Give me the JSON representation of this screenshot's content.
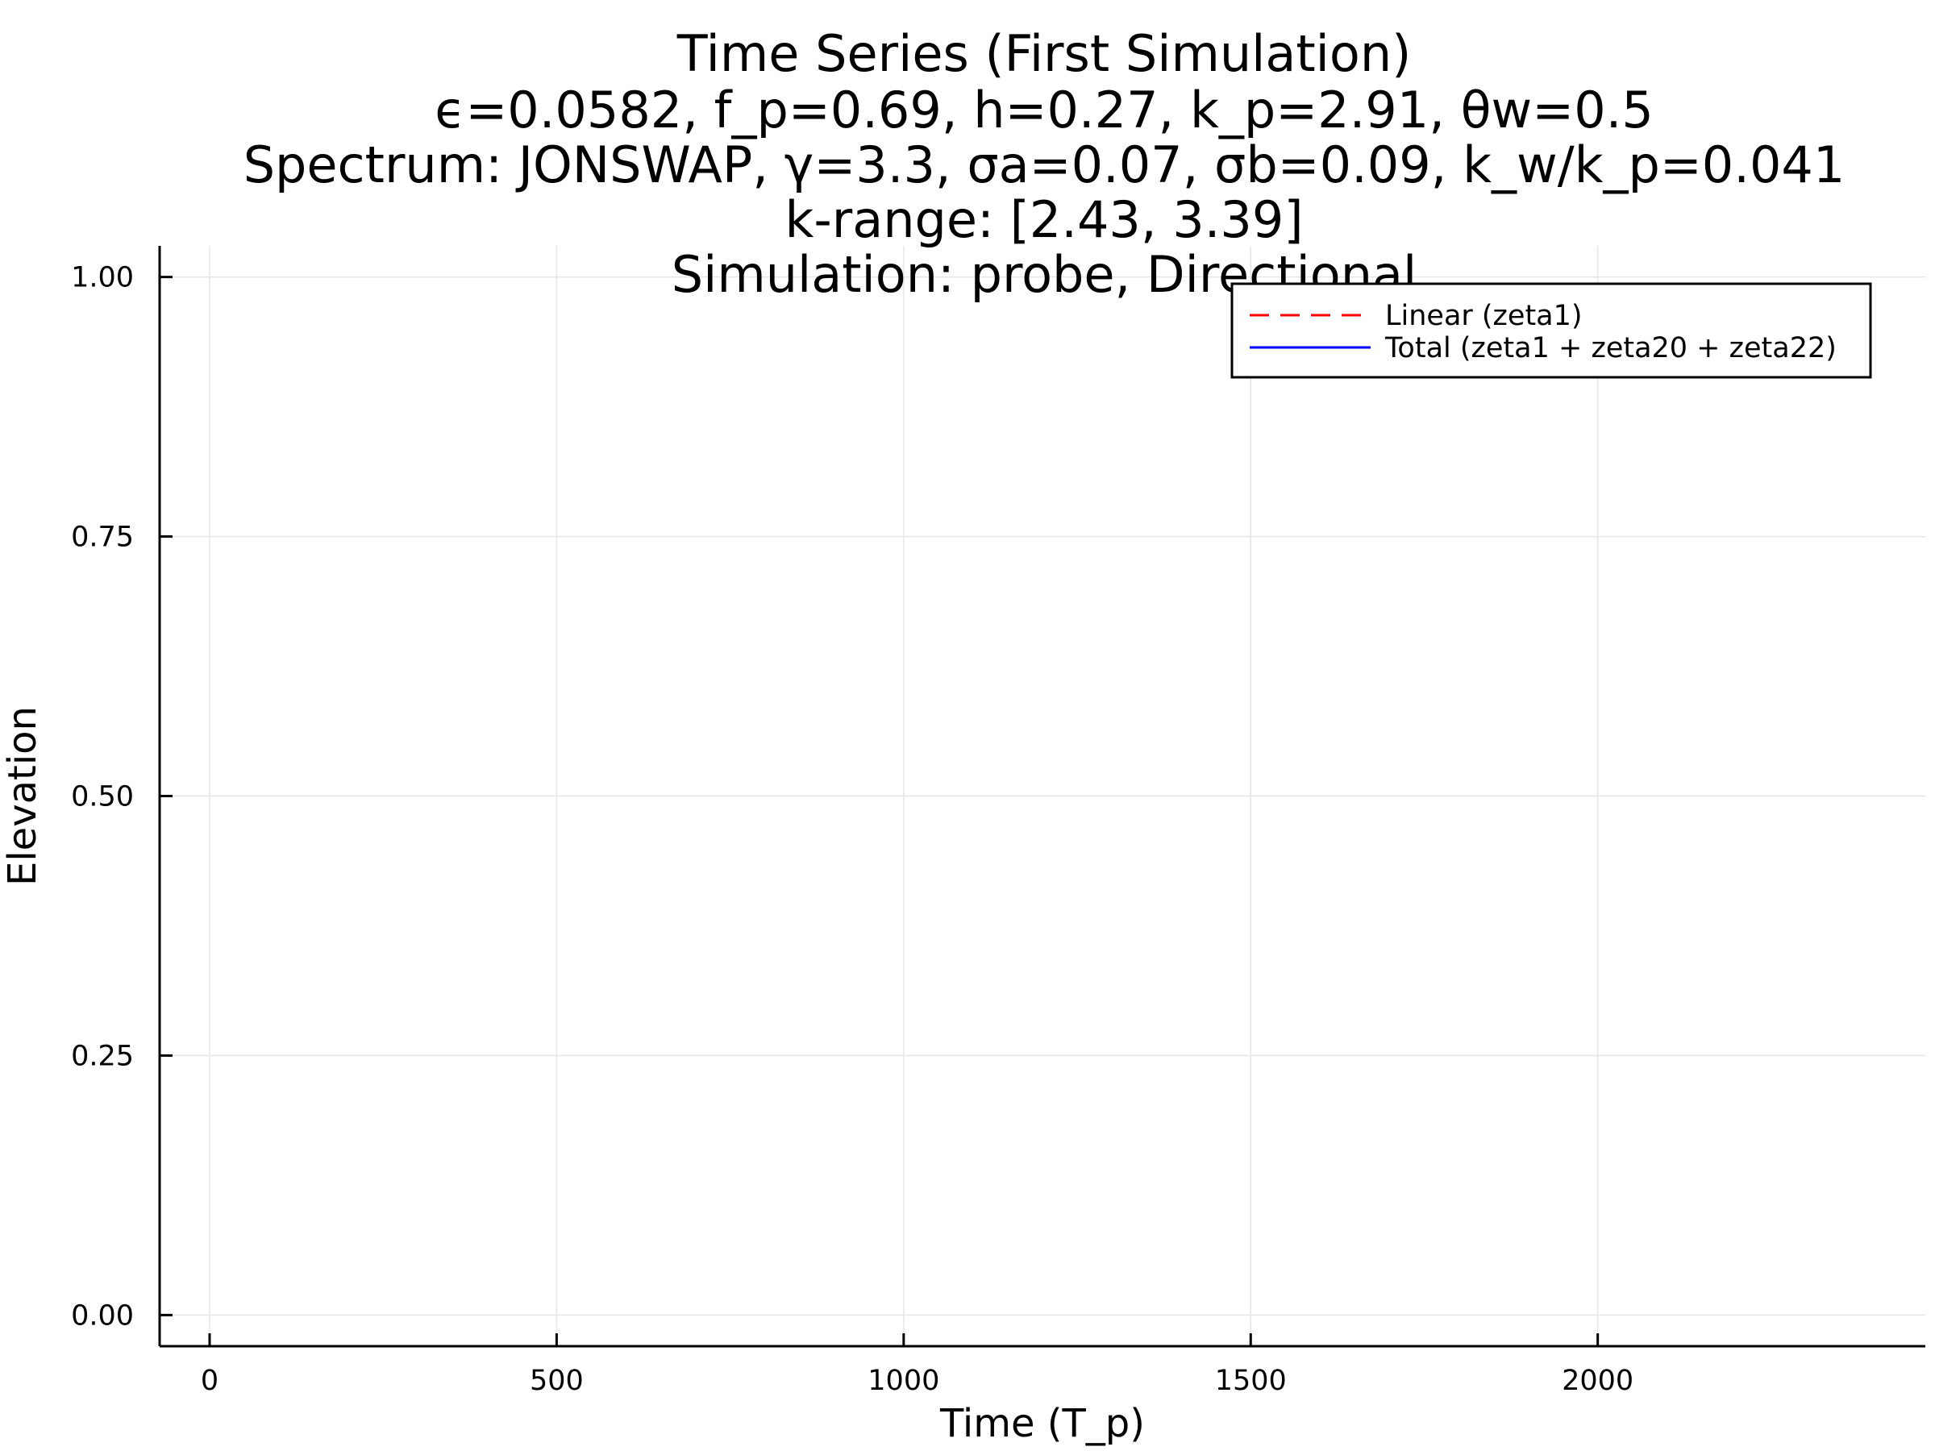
{
  "chart_data": {
    "type": "line",
    "title": [
      "Time Series (First Simulation)",
      "ϵ=0.0582, f_p=0.69, h=0.27, k_p=2.91, θw=0.5",
      "Spectrum: JONSWAP, γ=3.3, σa=0.07, σb=0.09, k_w/k_p=0.041",
      "k-range: [2.43, 3.39]",
      "Simulation: probe, Directional"
    ],
    "xlabel": "Time (T_p)",
    "ylabel": "Elevation",
    "xlim": [
      -72,
      2472
    ],
    "ylim": [
      -0.03,
      1.03
    ],
    "xticks": [
      0,
      500,
      1000,
      1500,
      2000
    ],
    "xtick_labels": [
      "0",
      "500",
      "1000",
      "1500",
      "2000"
    ],
    "yticks": [
      0,
      0.25,
      0.5,
      0.75,
      1.0
    ],
    "ytick_labels": [
      "0.00",
      "0.25",
      "0.50",
      "0.75",
      "1.00"
    ],
    "grid": true,
    "legend": "top-right",
    "series": [
      {
        "name": "Linear (zeta1)",
        "color": "#ff0000",
        "style": "dashed",
        "x": [],
        "y": []
      },
      {
        "name": "Total (zeta1 + zeta20 + zeta22)",
        "color": "#0000ff",
        "style": "solid",
        "x": [],
        "y": []
      }
    ]
  }
}
